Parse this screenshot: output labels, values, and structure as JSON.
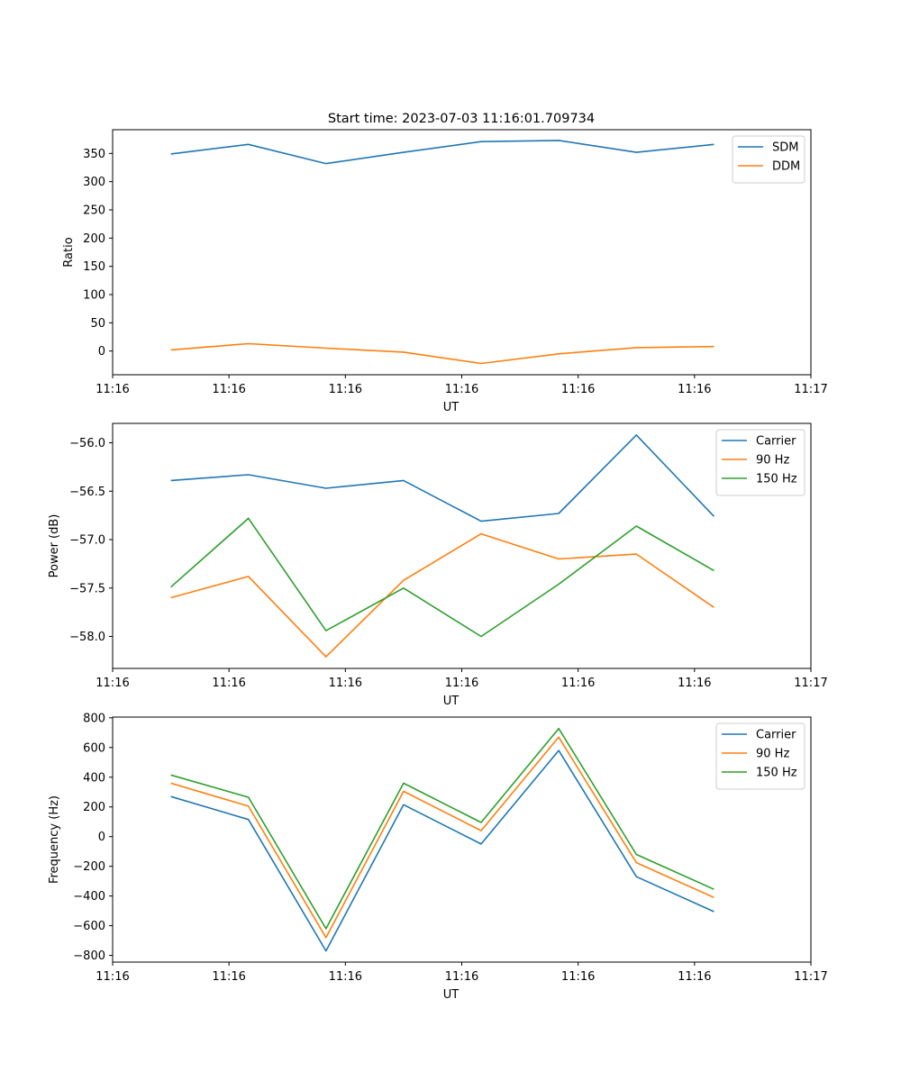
{
  "figure_title": "Start time: 2023-07-03 11:16:01.709734",
  "colors": {
    "blue": "#1f77b4",
    "orange": "#ff7f0e",
    "green": "#2ca02c"
  },
  "chart_data": [
    {
      "type": "line",
      "title": "Start time: 2023-07-03 11:16:01.709734",
      "xlabel": "UT",
      "ylabel": "Ratio",
      "xlim": [
        0,
        9
      ],
      "ylim": [
        -42,
        392
      ],
      "x": [
        0.75,
        1.75,
        2.75,
        3.75,
        4.75,
        5.75,
        6.75,
        7.75
      ],
      "xticks": [
        0,
        1.5,
        3,
        4.5,
        6,
        7.5,
        9
      ],
      "xtick_labels": [
        "11:16",
        "11:16",
        "11:16",
        "11:16",
        "11:16",
        "11:16",
        "11:17"
      ],
      "yticks": [
        0,
        50,
        100,
        150,
        200,
        250,
        300,
        350
      ],
      "ytick_labels": [
        "0",
        "50",
        "100",
        "150",
        "200",
        "250",
        "300",
        "350"
      ],
      "legend_position": "top-right",
      "series": [
        {
          "name": "SDM",
          "color": "#1f77b4",
          "values": [
            349,
            366,
            332,
            352,
            371,
            373,
            352,
            366
          ]
        },
        {
          "name": "DDM",
          "color": "#ff7f0e",
          "values": [
            2,
            13,
            5,
            -2,
            -22,
            -5,
            6,
            8
          ]
        }
      ]
    },
    {
      "type": "line",
      "title": "",
      "xlabel": "UT",
      "ylabel": "Power (dB)",
      "xlim": [
        0,
        9
      ],
      "ylim": [
        -58.33,
        -55.8
      ],
      "x": [
        0.75,
        1.75,
        2.75,
        3.75,
        4.75,
        5.75,
        6.75,
        7.75
      ],
      "xticks": [
        0,
        1.5,
        3,
        4.5,
        6,
        7.5,
        9
      ],
      "xtick_labels": [
        "11:16",
        "11:16",
        "11:16",
        "11:16",
        "11:16",
        "11:16",
        "11:17"
      ],
      "yticks": [
        -56.0,
        -56.5,
        -57.0,
        -57.5,
        -58.0
      ],
      "ytick_labels": [
        "−56.0",
        "−56.5",
        "−57.0",
        "−57.5",
        "−58.0"
      ],
      "legend_position": "top-right",
      "series": [
        {
          "name": "Carrier",
          "color": "#1f77b4",
          "values": [
            -56.39,
            -56.33,
            -56.47,
            -56.39,
            -56.81,
            -56.73,
            -55.92,
            -56.76
          ]
        },
        {
          "name": "90 Hz",
          "color": "#ff7f0e",
          "values": [
            -57.6,
            -57.38,
            -58.21,
            -57.42,
            -56.94,
            -57.2,
            -57.15,
            -57.7
          ]
        },
        {
          "name": "150 Hz",
          "color": "#2ca02c",
          "values": [
            -57.49,
            -56.78,
            -57.94,
            -57.5,
            -58.0,
            -57.46,
            -56.86,
            -57.32
          ]
        }
      ]
    },
    {
      "type": "line",
      "title": "",
      "xlabel": "UT",
      "ylabel": "Frequency (Hz)",
      "xlim": [
        0,
        9
      ],
      "ylim": [
        -845,
        805
      ],
      "x": [
        0.75,
        1.75,
        2.75,
        3.75,
        4.75,
        5.75,
        6.75,
        7.75
      ],
      "xticks": [
        0,
        1.5,
        3,
        4.5,
        6,
        7.5,
        9
      ],
      "xtick_labels": [
        "11:16",
        "11:16",
        "11:16",
        "11:16",
        "11:16",
        "11:16",
        "11:17"
      ],
      "yticks": [
        800,
        600,
        400,
        200,
        0,
        -200,
        -400,
        -600,
        -800
      ],
      "ytick_labels": [
        "800",
        "600",
        "400",
        "200",
        "0",
        "−200",
        "−400",
        "−600",
        "−800"
      ],
      "legend_position": "top-right",
      "series": [
        {
          "name": "Carrier",
          "color": "#1f77b4",
          "values": [
            270,
            115,
            -770,
            215,
            -50,
            580,
            -270,
            -505
          ]
        },
        {
          "name": "90 Hz",
          "color": "#ff7f0e",
          "values": [
            360,
            205,
            -680,
            305,
            40,
            670,
            -175,
            -410
          ]
        },
        {
          "name": "150 Hz",
          "color": "#2ca02c",
          "values": [
            415,
            265,
            -620,
            360,
            95,
            728,
            -120,
            -355
          ]
        }
      ]
    }
  ]
}
